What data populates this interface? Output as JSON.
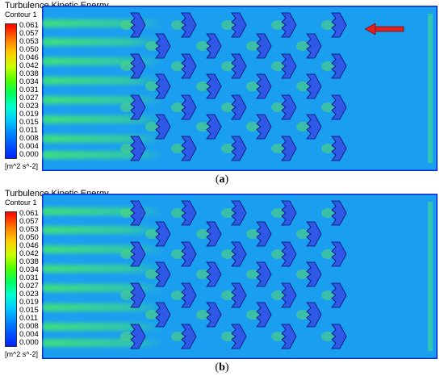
{
  "panels": [
    {
      "id": "a",
      "title": "Turbulence Kinetic Energy",
      "subtitle": "Contour 1",
      "units": "[m^2 s^-2]",
      "caption_letter": "a",
      "has_flow_arrow": true,
      "colorbar_ticks": [
        "0.061",
        "0.057",
        "0.053",
        "0.050",
        "0.046",
        "0.042",
        "0.038",
        "0.034",
        "0.031",
        "0.027",
        "0.023",
        "0.019",
        "0.015",
        "0.011",
        "0.008",
        "0.004",
        "0.000"
      ]
    },
    {
      "id": "b",
      "title": "Turbulence Kinetic Energy",
      "subtitle": "Contour 1",
      "units": "[m^2 s^-2]",
      "caption_letter": "b",
      "has_flow_arrow": false,
      "colorbar_ticks": [
        "0.061",
        "0.057",
        "0.053",
        "0.050",
        "0.046",
        "0.042",
        "0.038",
        "0.034",
        "0.031",
        "0.027",
        "0.023",
        "0.019",
        "0.015",
        "0.011",
        "0.008",
        "0.004",
        "0.000"
      ]
    }
  ],
  "colors": {
    "domain_background": "#1a9ff0",
    "inlet_edge": "#0a2bd8",
    "wake_green": "#3ee27a",
    "fin_fill": "#3058e6",
    "fin_edge": "#000c6e",
    "arrow": "#e0201c"
  }
}
